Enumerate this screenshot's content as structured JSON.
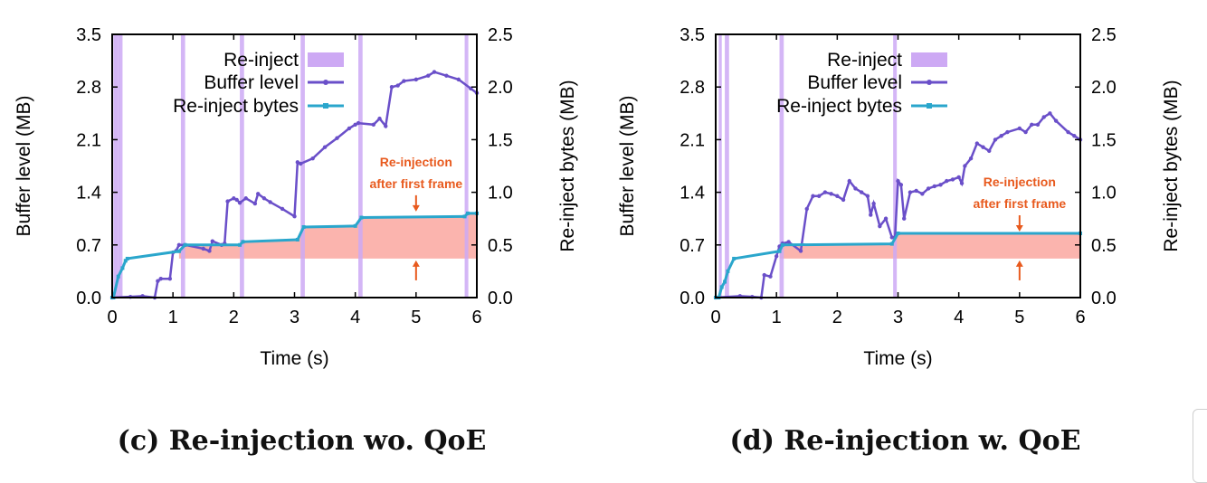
{
  "colors": {
    "reinject": "#cda9f4",
    "buffer": "#6a4fc9",
    "bytes": "#2aa6cc",
    "shade": "#fbb4ae",
    "annotation": "#e85a1e"
  },
  "chart_data": [
    {
      "type": "line",
      "caption": "(c) Re-injection wo. QoE",
      "xlabel": "Time (s)",
      "ylabel": "Buffer level (MB)",
      "y2label": "Re-inject bytes (MB)",
      "xlim": [
        0,
        6
      ],
      "ylim": [
        0,
        3.5
      ],
      "y2lim": [
        0,
        2.5
      ],
      "xticks": [
        "0",
        "1",
        "2",
        "3",
        "4",
        "5",
        "6"
      ],
      "yticks": [
        "0.0",
        "0.7",
        "1.4",
        "2.1",
        "2.8",
        "3.5"
      ],
      "y2ticks": [
        "0.0",
        "0.5",
        "1.0",
        "1.5",
        "2.0",
        "2.5"
      ],
      "legend": [
        "Re-inject",
        "Buffer level",
        "Re-inject bytes"
      ],
      "legend_position": "top-left",
      "annotation": [
        "Re-injection",
        "after first frame"
      ],
      "annotation_x": 5.0,
      "reinject_intervals": [
        [
          0.02,
          0.1
        ],
        [
          0.1,
          0.17
        ],
        [
          1.13,
          1.2
        ],
        [
          2.1,
          2.17
        ],
        [
          3.1,
          3.17
        ],
        [
          4.05,
          4.12
        ],
        [
          5.8,
          5.86
        ]
      ],
      "shaded_region": {
        "x": [
          1.1,
          6.0
        ],
        "y2_from": 0.37,
        "y2_to": [
          0.44,
          0.5,
          0.5,
          0.53,
          0.55,
          0.56,
          0.67,
          0.68,
          0.76,
          0.77,
          0.8
        ]
      },
      "series": [
        {
          "name": "Buffer level",
          "axis": "left",
          "x": [
            0,
            0.3,
            0.5,
            0.7,
            0.75,
            0.8,
            0.95,
            1.0,
            1.05,
            1.1,
            1.2,
            1.5,
            1.6,
            1.65,
            1.8,
            1.85,
            1.9,
            2.0,
            2.05,
            2.1,
            2.2,
            2.35,
            2.4,
            2.5,
            2.6,
            2.8,
            3.0,
            3.05,
            3.1,
            3.3,
            3.5,
            3.7,
            3.9,
            4.0,
            4.05,
            4.3,
            4.4,
            4.5,
            4.6,
            4.7,
            4.8,
            5.0,
            5.2,
            5.3,
            5.5,
            5.7,
            5.9,
            6.0
          ],
          "y": [
            0.0,
            0.01,
            0.02,
            0.0,
            0.22,
            0.25,
            0.25,
            0.6,
            0.62,
            0.7,
            0.7,
            0.65,
            0.62,
            0.75,
            0.7,
            0.72,
            1.28,
            1.32,
            1.3,
            1.26,
            1.32,
            1.25,
            1.38,
            1.32,
            1.27,
            1.18,
            1.08,
            1.8,
            1.78,
            1.85,
            2.0,
            2.12,
            2.25,
            2.3,
            2.32,
            2.3,
            2.38,
            2.28,
            2.8,
            2.82,
            2.88,
            2.9,
            2.95,
            3.0,
            2.95,
            2.9,
            2.78,
            2.72
          ]
        },
        {
          "name": "Re-inject bytes",
          "axis": "right",
          "x": [
            0,
            0.02,
            0.1,
            0.17,
            0.22,
            0.25,
            1.1,
            1.2,
            2.1,
            2.15,
            3.05,
            3.15,
            4.0,
            4.1,
            5.8,
            5.85,
            6.0
          ],
          "y": [
            0.0,
            0.0,
            0.2,
            0.28,
            0.35,
            0.37,
            0.44,
            0.5,
            0.5,
            0.53,
            0.55,
            0.67,
            0.68,
            0.76,
            0.77,
            0.8,
            0.8
          ]
        }
      ]
    },
    {
      "type": "line",
      "caption": "(d) Re-injection w. QoE",
      "xlabel": "Time (s)",
      "ylabel": "Buffer level (MB)",
      "y2label": "Re-inject bytes (MB)",
      "xlim": [
        0,
        6
      ],
      "ylim": [
        0,
        3.5
      ],
      "y2lim": [
        0,
        2.5
      ],
      "xticks": [
        "0",
        "1",
        "2",
        "3",
        "4",
        "5",
        "6"
      ],
      "yticks": [
        "0.0",
        "0.7",
        "1.4",
        "2.1",
        "2.8",
        "3.5"
      ],
      "y2ticks": [
        "0.0",
        "0.5",
        "1.0",
        "1.5",
        "2.0",
        "2.5"
      ],
      "legend": [
        "Re-inject",
        "Buffer level",
        "Re-inject bytes"
      ],
      "legend_position": "top-left",
      "annotation": [
        "Re-injection",
        "after first frame"
      ],
      "annotation_x": 5.0,
      "reinject_intervals": [
        [
          0.05,
          0.1
        ],
        [
          0.15,
          0.22
        ],
        [
          1.05,
          1.12
        ],
        [
          2.92,
          2.98
        ]
      ],
      "shaded_region": {
        "x": [
          1.05,
          6.0
        ],
        "y2_from": 0.37,
        "y2_to": [
          0.44,
          0.5,
          0.5,
          0.51,
          0.61,
          0.61
        ]
      },
      "series": [
        {
          "name": "Buffer level",
          "axis": "left",
          "x": [
            0,
            0.4,
            0.6,
            0.75,
            0.8,
            0.9,
            1.0,
            1.05,
            1.1,
            1.2,
            1.4,
            1.5,
            1.6,
            1.7,
            1.8,
            1.9,
            2.0,
            2.1,
            2.2,
            2.3,
            2.4,
            2.5,
            2.55,
            2.6,
            2.7,
            2.8,
            2.9,
            2.95,
            3.0,
            3.05,
            3.1,
            3.2,
            3.3,
            3.4,
            3.5,
            3.6,
            3.7,
            3.8,
            3.9,
            4.0,
            4.05,
            4.1,
            4.2,
            4.3,
            4.4,
            4.5,
            4.6,
            4.7,
            4.8,
            5.0,
            5.1,
            5.2,
            5.3,
            5.4,
            5.5,
            5.6,
            5.8,
            5.9,
            6.0
          ],
          "y": [
            0.0,
            0.02,
            0.01,
            0.0,
            0.3,
            0.28,
            0.55,
            0.68,
            0.72,
            0.74,
            0.62,
            1.18,
            1.35,
            1.35,
            1.4,
            1.38,
            1.35,
            1.3,
            1.55,
            1.45,
            1.4,
            1.35,
            1.1,
            1.25,
            0.95,
            1.05,
            0.8,
            0.8,
            1.55,
            1.5,
            1.05,
            1.4,
            1.42,
            1.38,
            1.45,
            1.48,
            1.5,
            1.55,
            1.57,
            1.6,
            1.52,
            1.75,
            1.85,
            2.05,
            2.0,
            1.95,
            2.1,
            2.15,
            2.2,
            2.25,
            2.2,
            2.3,
            2.3,
            2.4,
            2.45,
            2.35,
            2.2,
            2.15,
            2.1
          ]
        },
        {
          "name": "Re-inject bytes",
          "axis": "right",
          "x": [
            0,
            0.05,
            0.1,
            0.15,
            0.2,
            0.3,
            1.05,
            1.1,
            2.9,
            3.0,
            6.0
          ],
          "y": [
            0.0,
            0.0,
            0.1,
            0.15,
            0.25,
            0.37,
            0.44,
            0.5,
            0.51,
            0.61,
            0.61
          ]
        }
      ]
    }
  ]
}
